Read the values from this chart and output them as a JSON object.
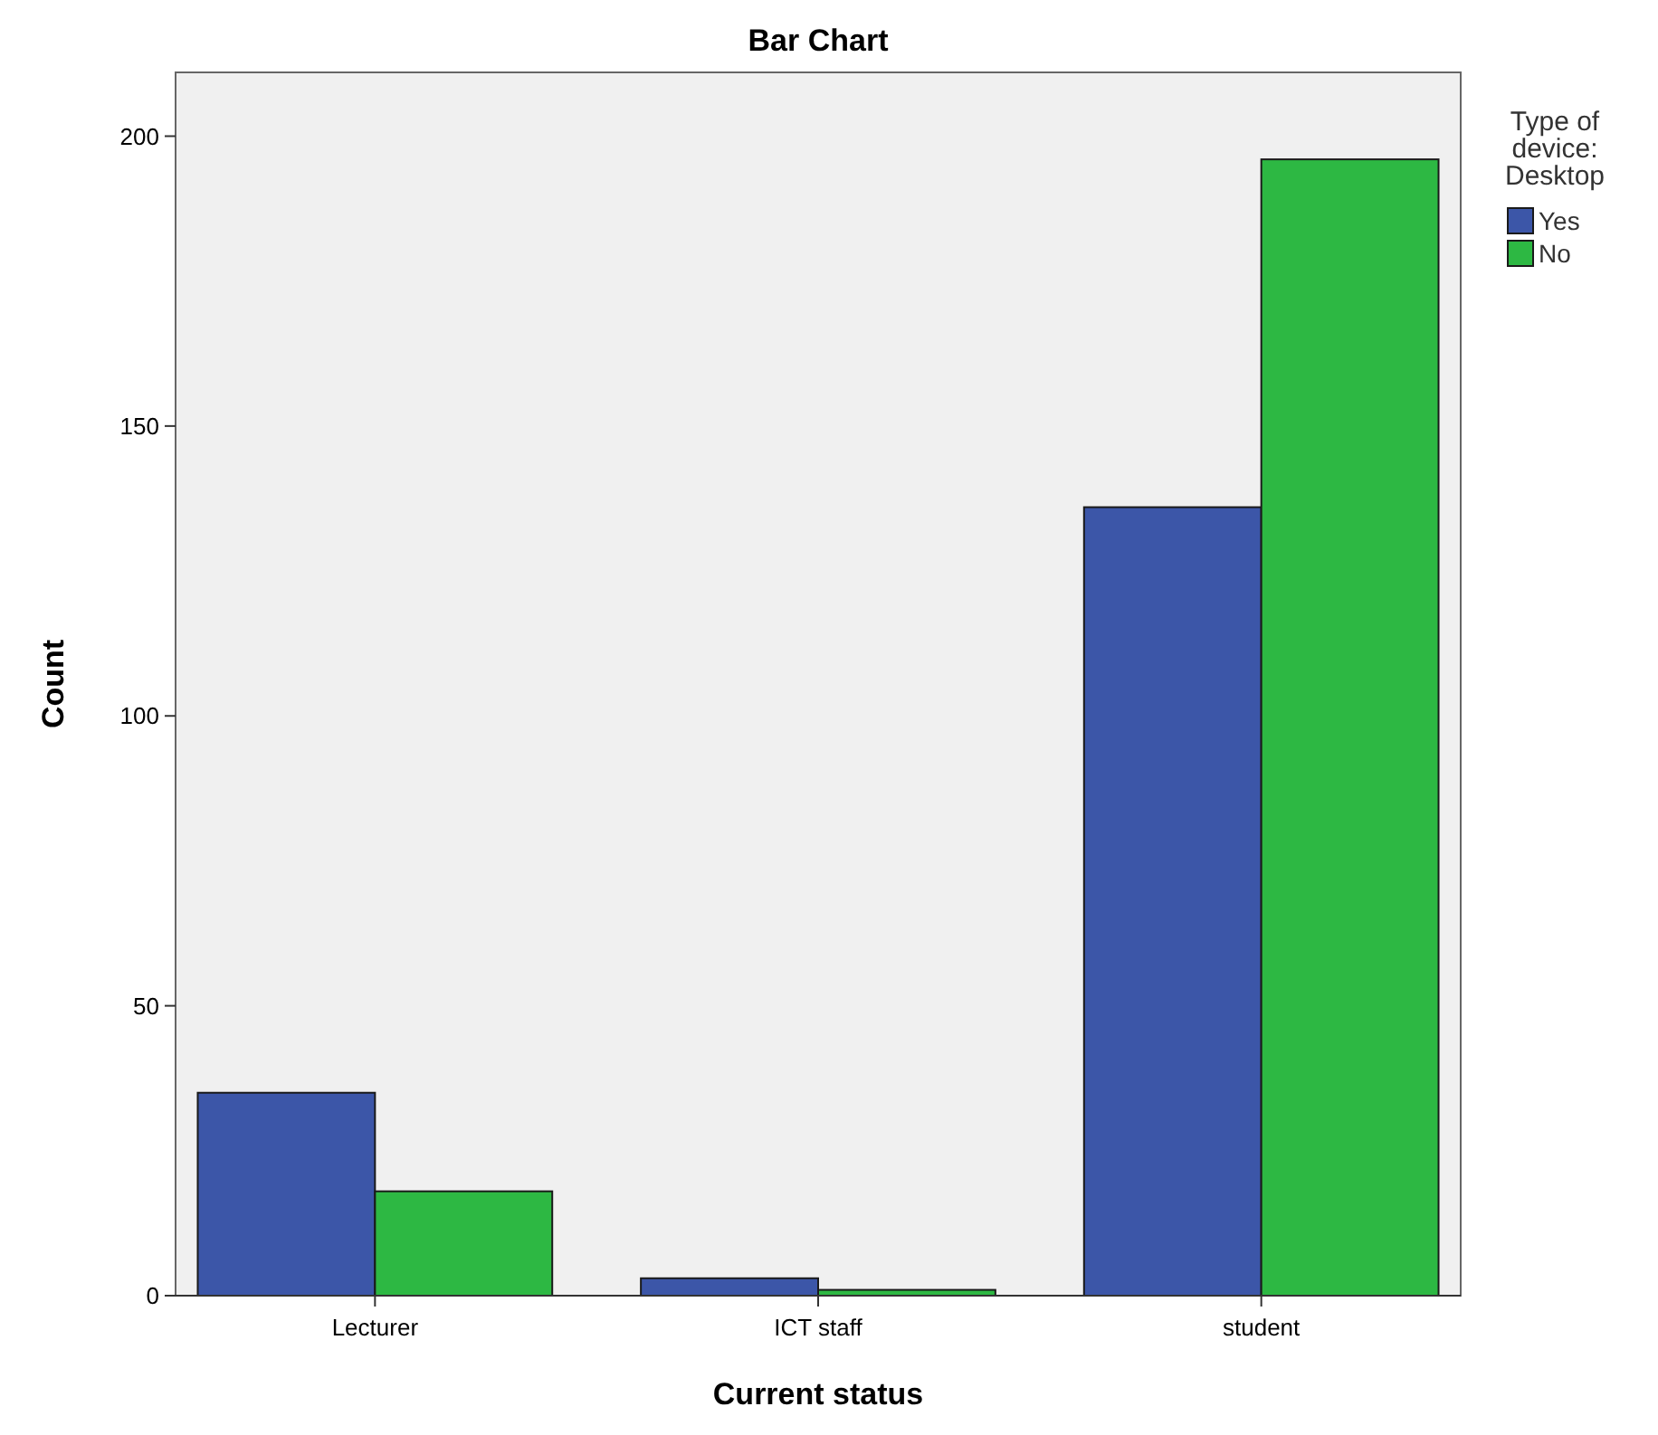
{
  "chart_data": {
    "type": "bar",
    "title": "Bar Chart",
    "xlabel": "Current status",
    "ylabel": "Count",
    "legend_title": "Type of device: Desktop",
    "categories": [
      "Lecturer",
      "ICT staff",
      "student"
    ],
    "series": [
      {
        "name": "Yes",
        "color": "#3c56a8",
        "values": [
          35,
          3,
          136
        ]
      },
      {
        "name": "No",
        "color": "#2db843",
        "values": [
          18,
          1,
          196
        ]
      }
    ],
    "ylim": [
      0,
      211
    ],
    "yticks": [
      0,
      50,
      100,
      150,
      200
    ],
    "grid": false,
    "legend": "top right"
  }
}
